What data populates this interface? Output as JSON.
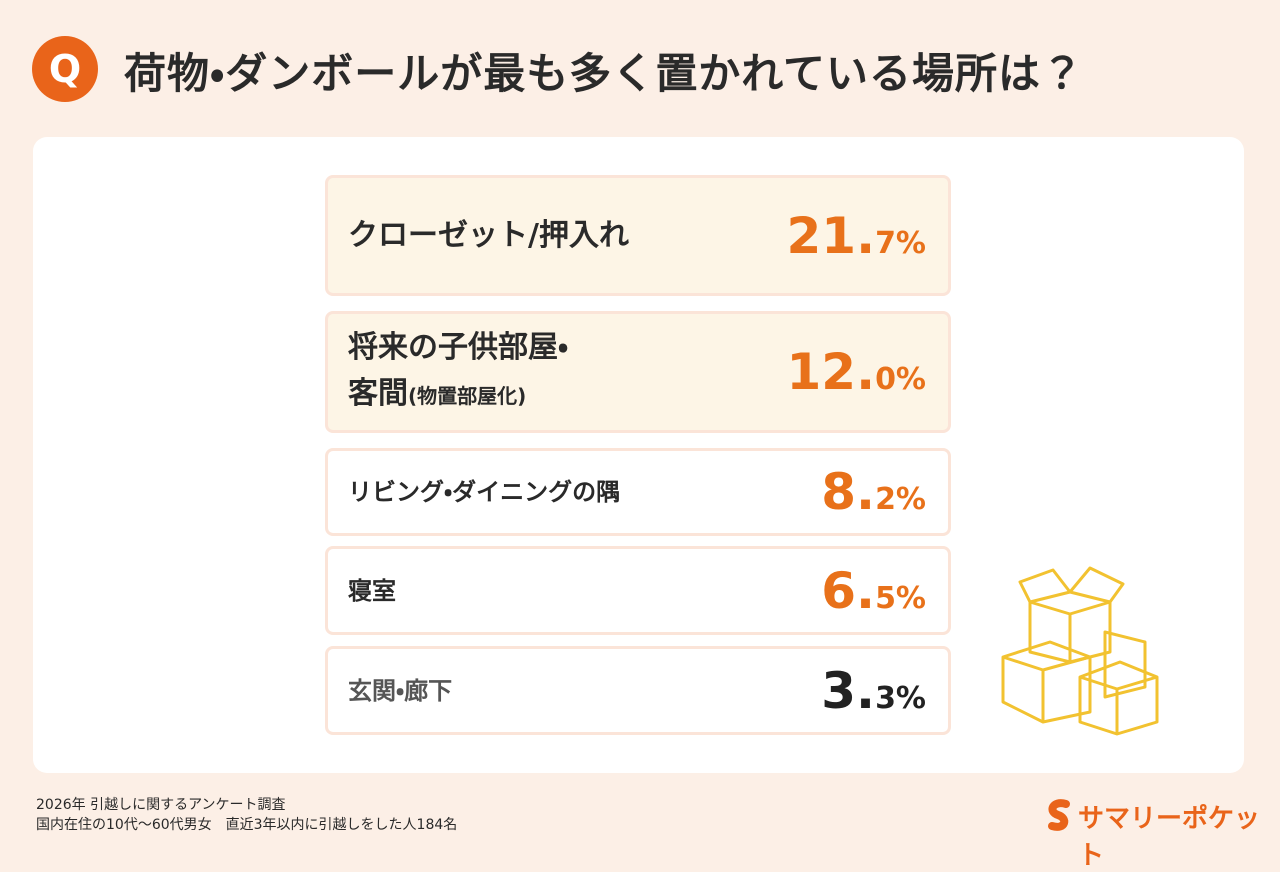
{
  "header": {
    "badge": "Q",
    "title": "荷物・ダンボールが最も多く置かれている場所は？"
  },
  "items": [
    {
      "label_lines": [
        "クローゼット/押入れ"
      ],
      "value": "21.7%"
    },
    {
      "label_lines": [
        "将来の子供部屋・",
        "客間"
      ],
      "note": "(物置部屋化)",
      "value": "12.0%"
    },
    {
      "label_lines": [
        "リビング・ダイニングの隅"
      ],
      "value": "8.2%"
    },
    {
      "label_lines": [
        "寝室"
      ],
      "value": "6.5%"
    },
    {
      "label_lines": [
        "玄関・廊下"
      ],
      "value": "3.3%"
    }
  ],
  "footer": {
    "lines": [
      "2026年  引越しに関するアンケート調査",
      "国内在住の10代〜60代男女　直近3年以内に引越しをした人184名"
    ],
    "brand": "サマリーポケット"
  }
}
